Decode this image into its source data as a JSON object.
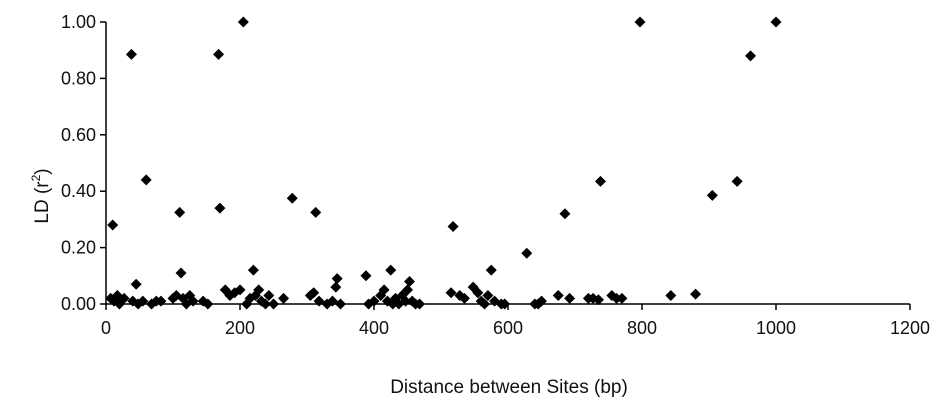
{
  "chart_data": {
    "type": "scatter",
    "title": "",
    "xlabel": "Distance between Sites (bp)",
    "ylabel_main": "LD (r",
    "ylabel_sup": "2",
    "ylabel_end": ")",
    "xlim": [
      0,
      1200
    ],
    "ylim": [
      0,
      1.0
    ],
    "xticks": [
      "0",
      "200",
      "400",
      "600",
      "800",
      "1000",
      "1200"
    ],
    "yticks": [
      "0.00",
      "0.20",
      "0.40",
      "0.60",
      "0.80",
      "1.00"
    ],
    "grid": false,
    "legend": "none",
    "marker": "diamond",
    "marker_color": "#000000",
    "points": [
      {
        "x": 7,
        "y": 0.02
      },
      {
        "x": 10,
        "y": 0.28
      },
      {
        "x": 12,
        "y": 0.01
      },
      {
        "x": 17,
        "y": 0.03
      },
      {
        "x": 20,
        "y": 0.0
      },
      {
        "x": 27,
        "y": 0.02
      },
      {
        "x": 38,
        "y": 0.885
      },
      {
        "x": 40,
        "y": 0.01
      },
      {
        "x": 45,
        "y": 0.07
      },
      {
        "x": 48,
        "y": 0.0
      },
      {
        "x": 55,
        "y": 0.01
      },
      {
        "x": 60,
        "y": 0.44
      },
      {
        "x": 68,
        "y": 0.0
      },
      {
        "x": 75,
        "y": 0.01
      },
      {
        "x": 82,
        "y": 0.01
      },
      {
        "x": 100,
        "y": 0.02
      },
      {
        "x": 105,
        "y": 0.03
      },
      {
        "x": 110,
        "y": 0.325
      },
      {
        "x": 112,
        "y": 0.11
      },
      {
        "x": 115,
        "y": 0.02
      },
      {
        "x": 120,
        "y": 0.0
      },
      {
        "x": 125,
        "y": 0.03
      },
      {
        "x": 130,
        "y": 0.01
      },
      {
        "x": 145,
        "y": 0.01
      },
      {
        "x": 152,
        "y": 0.0
      },
      {
        "x": 168,
        "y": 0.885
      },
      {
        "x": 170,
        "y": 0.34
      },
      {
        "x": 178,
        "y": 0.05
      },
      {
        "x": 185,
        "y": 0.03
      },
      {
        "x": 192,
        "y": 0.04
      },
      {
        "x": 200,
        "y": 0.05
      },
      {
        "x": 205,
        "y": 1.0
      },
      {
        "x": 210,
        "y": 0.0
      },
      {
        "x": 215,
        "y": 0.02
      },
      {
        "x": 220,
        "y": 0.12
      },
      {
        "x": 223,
        "y": 0.03
      },
      {
        "x": 228,
        "y": 0.05
      },
      {
        "x": 232,
        "y": 0.01
      },
      {
        "x": 238,
        "y": 0.0
      },
      {
        "x": 243,
        "y": 0.03
      },
      {
        "x": 250,
        "y": 0.0
      },
      {
        "x": 265,
        "y": 0.02
      },
      {
        "x": 278,
        "y": 0.375
      },
      {
        "x": 305,
        "y": 0.03
      },
      {
        "x": 310,
        "y": 0.04
      },
      {
        "x": 313,
        "y": 0.325
      },
      {
        "x": 318,
        "y": 0.01
      },
      {
        "x": 330,
        "y": 0.0
      },
      {
        "x": 338,
        "y": 0.01
      },
      {
        "x": 343,
        "y": 0.06
      },
      {
        "x": 345,
        "y": 0.09
      },
      {
        "x": 350,
        "y": 0.0
      },
      {
        "x": 388,
        "y": 0.1
      },
      {
        "x": 392,
        "y": 0.0
      },
      {
        "x": 400,
        "y": 0.01
      },
      {
        "x": 410,
        "y": 0.03
      },
      {
        "x": 415,
        "y": 0.05
      },
      {
        "x": 420,
        "y": 0.01
      },
      {
        "x": 425,
        "y": 0.12
      },
      {
        "x": 428,
        "y": 0.0
      },
      {
        "x": 432,
        "y": 0.02
      },
      {
        "x": 437,
        "y": 0.0
      },
      {
        "x": 442,
        "y": 0.03
      },
      {
        "x": 447,
        "y": 0.01
      },
      {
        "x": 450,
        "y": 0.05
      },
      {
        "x": 453,
        "y": 0.08
      },
      {
        "x": 457,
        "y": 0.01
      },
      {
        "x": 462,
        "y": 0.0
      },
      {
        "x": 468,
        "y": 0.0
      },
      {
        "x": 515,
        "y": 0.04
      },
      {
        "x": 518,
        "y": 0.275
      },
      {
        "x": 528,
        "y": 0.03
      },
      {
        "x": 535,
        "y": 0.02
      },
      {
        "x": 548,
        "y": 0.06
      },
      {
        "x": 555,
        "y": 0.04
      },
      {
        "x": 560,
        "y": 0.01
      },
      {
        "x": 565,
        "y": 0.0
      },
      {
        "x": 570,
        "y": 0.03
      },
      {
        "x": 575,
        "y": 0.12
      },
      {
        "x": 580,
        "y": 0.01
      },
      {
        "x": 590,
        "y": 0.0
      },
      {
        "x": 595,
        "y": 0.0
      },
      {
        "x": 628,
        "y": 0.18
      },
      {
        "x": 640,
        "y": 0.0
      },
      {
        "x": 645,
        "y": 0.0
      },
      {
        "x": 650,
        "y": 0.01
      },
      {
        "x": 675,
        "y": 0.03
      },
      {
        "x": 685,
        "y": 0.32
      },
      {
        "x": 692,
        "y": 0.02
      },
      {
        "x": 720,
        "y": 0.02
      },
      {
        "x": 727,
        "y": 0.02
      },
      {
        "x": 735,
        "y": 0.015
      },
      {
        "x": 738,
        "y": 0.435
      },
      {
        "x": 755,
        "y": 0.03
      },
      {
        "x": 762,
        "y": 0.02
      },
      {
        "x": 770,
        "y": 0.02
      },
      {
        "x": 797,
        "y": 1.0
      },
      {
        "x": 843,
        "y": 0.03
      },
      {
        "x": 880,
        "y": 0.035
      },
      {
        "x": 905,
        "y": 0.385
      },
      {
        "x": 942,
        "y": 0.435
      },
      {
        "x": 962,
        "y": 0.88
      },
      {
        "x": 1000,
        "y": 1.0
      }
    ]
  }
}
